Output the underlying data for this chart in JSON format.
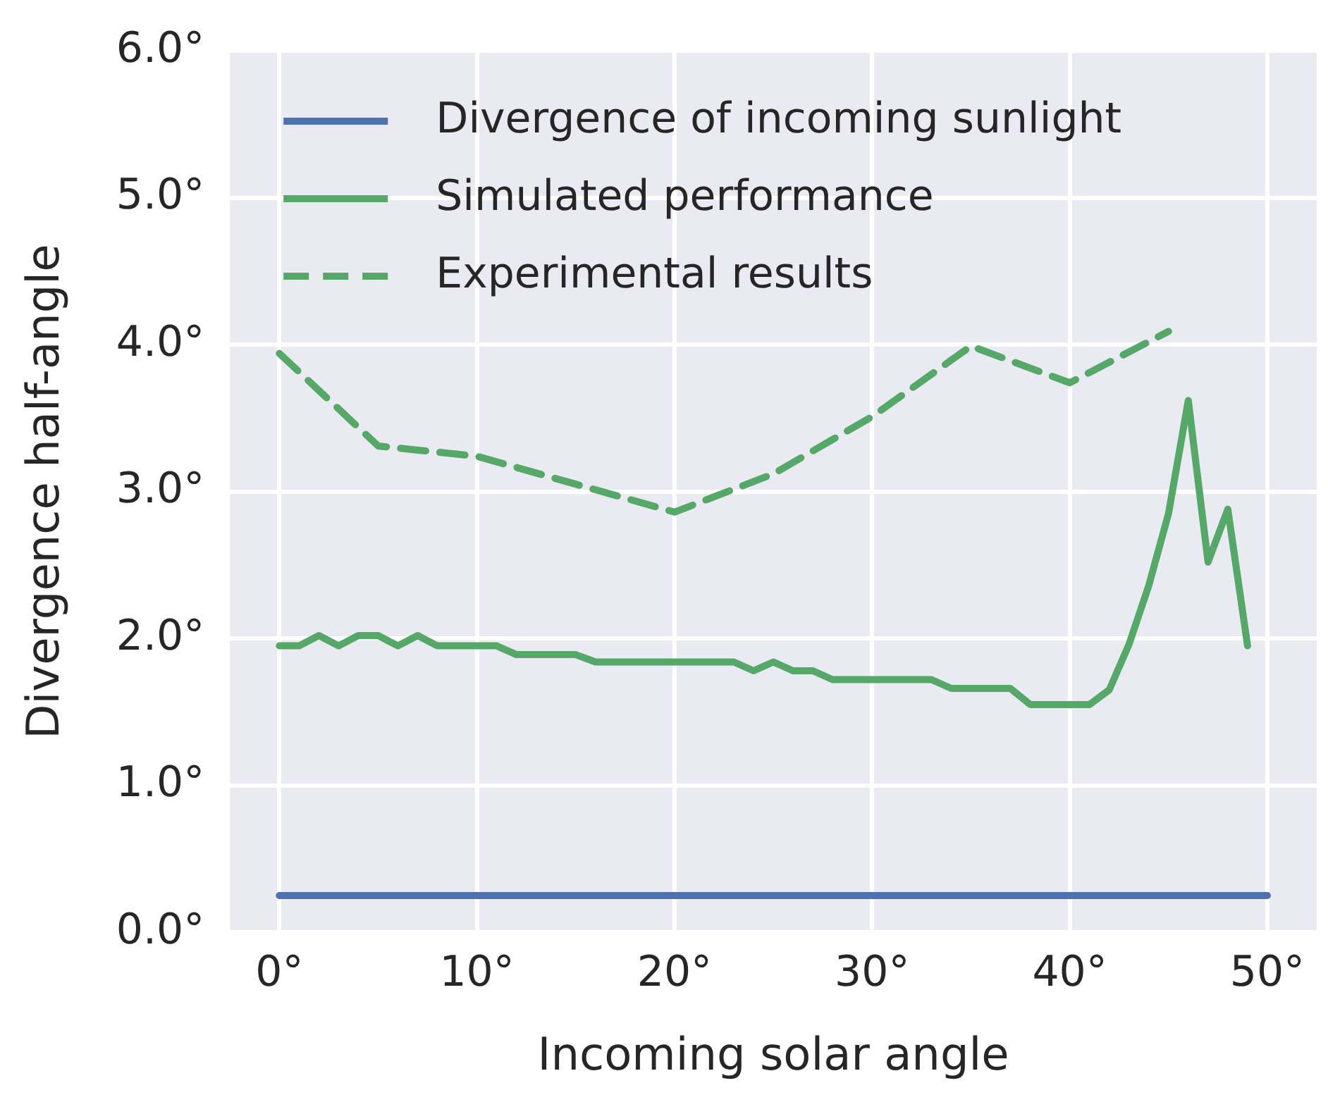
{
  "chart_data": {
    "type": "line",
    "xlabel": "Incoming solar angle",
    "ylabel": "Divergence half-angle",
    "xlim": [
      -2.5,
      52.5
    ],
    "ylim": [
      0,
      6
    ],
    "xticks": [
      {
        "value": 0,
        "label": "0°"
      },
      {
        "value": 10,
        "label": "10°"
      },
      {
        "value": 20,
        "label": "20°"
      },
      {
        "value": 30,
        "label": "30°"
      },
      {
        "value": 40,
        "label": "40°"
      },
      {
        "value": 50,
        "label": "50°"
      }
    ],
    "yticks": [
      {
        "value": 0,
        "label": "0.0°"
      },
      {
        "value": 1,
        "label": "1.0°"
      },
      {
        "value": 2,
        "label": "2.0°"
      },
      {
        "value": 3,
        "label": "3.0°"
      },
      {
        "value": 4,
        "label": "4.0°"
      },
      {
        "value": 5,
        "label": "5.0°"
      },
      {
        "value": 6,
        "label": "6.0°"
      }
    ],
    "grid": true,
    "legend": "top left",
    "marker": "none",
    "series": [
      {
        "name": "Divergence of incoming sunlight",
        "color": "#4c72b0",
        "x": [
          0,
          50
        ],
        "values": [
          0.25,
          0.25
        ]
      },
      {
        "name": "Simulated performance",
        "color": "#55a868",
        "x": [
          0,
          1,
          2,
          3,
          4,
          5,
          6,
          7,
          8,
          9,
          10,
          11,
          12,
          13,
          14,
          15,
          16,
          17,
          18,
          19,
          20,
          21,
          22,
          23,
          24,
          25,
          26,
          27,
          28,
          29,
          30,
          31,
          32,
          33,
          34,
          35,
          36,
          37,
          38,
          39,
          40,
          41,
          42,
          43,
          44,
          45,
          46,
          47,
          48,
          49
        ],
        "values": [
          1.95,
          1.95,
          2.02,
          1.95,
          2.02,
          2.02,
          1.95,
          2.02,
          1.95,
          1.95,
          1.95,
          1.95,
          1.89,
          1.89,
          1.89,
          1.89,
          1.84,
          1.84,
          1.84,
          1.84,
          1.84,
          1.84,
          1.84,
          1.84,
          1.78,
          1.84,
          1.78,
          1.78,
          1.72,
          1.72,
          1.72,
          1.72,
          1.72,
          1.72,
          1.66,
          1.66,
          1.66,
          1.66,
          1.55,
          1.55,
          1.55,
          1.55,
          1.65,
          1.96,
          2.36,
          2.85,
          3.62,
          2.52,
          2.88,
          1.95
        ]
      },
      {
        "name": "Experimental results",
        "color": "#55a868",
        "line_style": "dashed",
        "x": [
          0,
          5,
          10,
          15,
          20,
          25,
          30,
          35,
          40,
          45
        ],
        "values": [
          3.94,
          3.31,
          3.24,
          3.05,
          2.86,
          3.12,
          3.51,
          3.99,
          3.74,
          4.09
        ]
      }
    ]
  }
}
